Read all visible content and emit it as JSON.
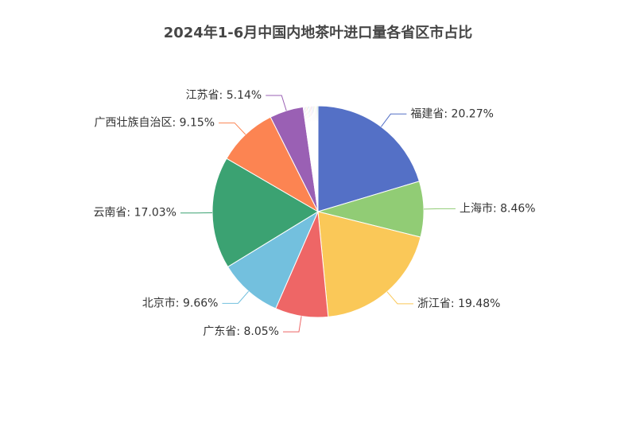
{
  "chart_data": {
    "type": "pie",
    "title": "2024年1-6月中国内地茶叶进口量各省区市占比",
    "slices": [
      {
        "name": "福建省",
        "value": 20.27,
        "label": "福建省: 20.27%",
        "color": "#5470c6",
        "labeled": true
      },
      {
        "name": "上海市",
        "value": 8.46,
        "label": "上海市: 8.46%",
        "color": "#91cc75",
        "labeled": true
      },
      {
        "name": "浙江省",
        "value": 19.48,
        "label": "浙江省: 19.48%",
        "color": "#fac858",
        "labeled": true
      },
      {
        "name": "广东省",
        "value": 8.05,
        "label": "广东省: 8.05%",
        "color": "#ee6666",
        "labeled": true
      },
      {
        "name": "北京市",
        "value": 9.66,
        "label": "北京市: 9.66%",
        "color": "#73c0de",
        "labeled": true
      },
      {
        "name": "云南省",
        "value": 17.03,
        "label": "云南省: 17.03%",
        "color": "#3ba272",
        "labeled": true
      },
      {
        "name": "广西壮族自治区",
        "value": 9.15,
        "label": "广西壮族自治区: 9.15%",
        "color": "#fc8452",
        "labeled": true
      },
      {
        "name": "江苏省",
        "value": 5.14,
        "label": "江苏省: 5.14%",
        "color": "#9a60b4",
        "labeled": true
      },
      {
        "name": "",
        "value": 0.14,
        "label": "",
        "color": "#ea7ccc",
        "labeled": false
      },
      {
        "name": "",
        "value": 0.14,
        "label": "",
        "color": "#5470c6",
        "labeled": false
      },
      {
        "name": "",
        "value": 0.14,
        "label": "",
        "color": "#91cc75",
        "labeled": false
      },
      {
        "name": "",
        "value": 0.14,
        "label": "",
        "color": "#fac858",
        "labeled": false
      },
      {
        "name": "",
        "value": 0.14,
        "label": "",
        "color": "#ee6666",
        "labeled": false
      },
      {
        "name": "",
        "value": 0.14,
        "label": "",
        "color": "#73c0de",
        "labeled": false
      },
      {
        "name": "",
        "value": 0.14,
        "label": "",
        "color": "#3ba272",
        "labeled": false
      },
      {
        "name": "",
        "value": 0.14,
        "label": "",
        "color": "#fc8452",
        "labeled": false
      },
      {
        "name": "",
        "value": 0.14,
        "label": "",
        "color": "#9a60b4",
        "labeled": false
      },
      {
        "name": "",
        "value": 0.14,
        "label": "",
        "color": "#ea7ccc",
        "labeled": false
      },
      {
        "name": "",
        "value": 0.14,
        "label": "",
        "color": "#5470c6",
        "labeled": false
      },
      {
        "name": "",
        "value": 0.14,
        "label": "",
        "color": "#91cc75",
        "labeled": false
      },
      {
        "name": "",
        "value": 0.14,
        "label": "",
        "color": "#fac858",
        "labeled": false
      },
      {
        "name": "",
        "value": 0.14,
        "label": "",
        "color": "#ee6666",
        "labeled": false
      },
      {
        "name": "",
        "value": 0.14,
        "label": "",
        "color": "#73c0de",
        "labeled": false
      },
      {
        "name": "",
        "value": 0.14,
        "label": "",
        "color": "#3ba272",
        "labeled": false
      }
    ]
  }
}
